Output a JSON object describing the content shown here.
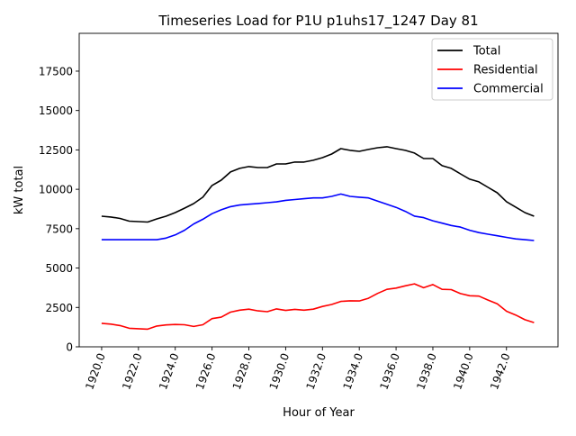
{
  "chart_data": {
    "type": "line",
    "title": "Timeseries Load for P1U p1uhs17_1247  Day 81",
    "xlabel": "Hour of Year",
    "ylabel": "kW total",
    "xlim": [
      1918.78,
      1944.8
    ],
    "ylim": [
      0,
      19900
    ],
    "xticks": [
      1920,
      1922,
      1924,
      1926,
      1928,
      1930,
      1932,
      1934,
      1936,
      1938,
      1940,
      1942
    ],
    "xtick_labels": [
      "1920.0",
      "1922.0",
      "1924.0",
      "1926.0",
      "1928.0",
      "1930.0",
      "1932.0",
      "1934.0",
      "1936.0",
      "1938.0",
      "1940.0",
      "1942.0"
    ],
    "yticks": [
      0,
      2500,
      5000,
      7500,
      10000,
      12500,
      15000,
      17500
    ],
    "ytick_labels": [
      "0",
      "2500",
      "5000",
      "7500",
      "10000",
      "12500",
      "15000",
      "17500"
    ],
    "grid": false,
    "legend_position": "top-right",
    "x_start": 1920,
    "x_step": 0.5,
    "series": [
      {
        "name": "Total",
        "color": "#000000",
        "values": [
          8290,
          8240,
          8150,
          7980,
          7950,
          7920,
          8120,
          8290,
          8520,
          8800,
          9090,
          9500,
          10240,
          10580,
          11100,
          11330,
          11440,
          11380,
          11380,
          11610,
          11610,
          11730,
          11730,
          11840,
          12010,
          12240,
          12580,
          12470,
          12410,
          12530,
          12640,
          12700,
          12580,
          12470,
          12300,
          11950,
          11950,
          11500,
          11330,
          10980,
          10640,
          10470,
          10120,
          9780,
          9210,
          8870,
          8520,
          8290
        ]
      },
      {
        "name": "Residential",
        "color": "#ff0000",
        "values": [
          1490,
          1440,
          1350,
          1180,
          1150,
          1120,
          1320,
          1390,
          1420,
          1400,
          1290,
          1400,
          1790,
          1880,
          2200,
          2330,
          2390,
          2280,
          2230,
          2410,
          2310,
          2380,
          2330,
          2390,
          2560,
          2690,
          2880,
          2920,
          2910,
          3080,
          3390,
          3650,
          3730,
          3870,
          4000,
          3750,
          3950,
          3650,
          3630,
          3380,
          3240,
          3220,
          2970,
          2730,
          2260,
          2020,
          1720,
          1540
        ]
      },
      {
        "name": "Commercial",
        "color": "#0000ff",
        "values": [
          6800,
          6800,
          6800,
          6800,
          6800,
          6800,
          6800,
          6900,
          7100,
          7400,
          7800,
          8100,
          8450,
          8700,
          8900,
          9000,
          9050,
          9100,
          9150,
          9200,
          9300,
          9350,
          9400,
          9450,
          9450,
          9550,
          9700,
          9550,
          9500,
          9450,
          9250,
          9050,
          8850,
          8600,
          8300,
          8200,
          8000,
          7850,
          7700,
          7600,
          7400,
          7250,
          7150,
          7050,
          6950,
          6850,
          6800,
          6750
        ]
      }
    ]
  }
}
